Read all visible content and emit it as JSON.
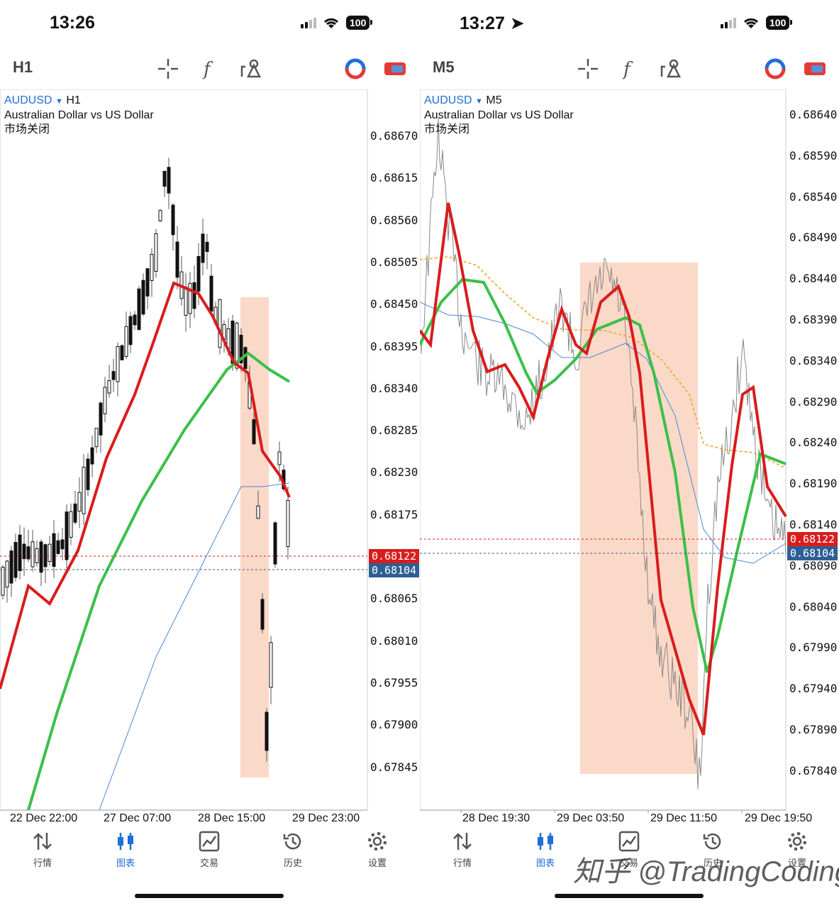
{
  "left": {
    "time": "13:26",
    "timeframe": "H1",
    "symbol": "AUDUSD",
    "chart_tf": "H1",
    "description": "Australian Dollar vs US Dollar",
    "market_status": "市场关闭",
    "price_scale": [
      "0.68670",
      "0.68615",
      "0.68560",
      "0.68505",
      "0.68450",
      "0.68395",
      "0.68340",
      "0.68285",
      "0.68230",
      "0.68175",
      "0.68065",
      "0.68010",
      "0.67955",
      "0.67900",
      "0.67845"
    ],
    "bid_price": "0.68122",
    "ask_price": "0.68104",
    "dates": [
      "22 Dec 22:00",
      "27 Dec 07:00",
      "28 Dec 15:00",
      "29 Dec 23:00"
    ]
  },
  "right": {
    "time": "13:27",
    "timeframe": "M5",
    "symbol": "AUDUSD",
    "chart_tf": "M5",
    "description": "Australian Dollar vs US Dollar",
    "market_status": "市场关闭",
    "price_scale": [
      "0.68640",
      "0.68590",
      "0.68540",
      "0.68490",
      "0.68440",
      "0.68390",
      "0.68340",
      "0.68290",
      "0.68240",
      "0.68190",
      "0.68140",
      "0.68090",
      "0.68040",
      "0.67990",
      "0.67940",
      "0.67890",
      "0.67840"
    ],
    "bid_price": "0.68122",
    "ask_price": "0.68104",
    "dates": [
      "28 Dec 19:30",
      "29 Dec 03:50",
      "29 Dec 11:50",
      "29 Dec 19:50"
    ]
  },
  "battery": "100",
  "nav": [
    "行情",
    "图表",
    "交易",
    "历史",
    "设置"
  ],
  "watermark": "知乎 @TradingCoding",
  "colors": {
    "accent": "#1e6fd9",
    "bid": "#d91c1c",
    "ask": "#2d5f94",
    "ma_fast": "#d91c1c",
    "ma_slow": "#3cbf4a",
    "highlight": "#fbd9c8"
  }
}
